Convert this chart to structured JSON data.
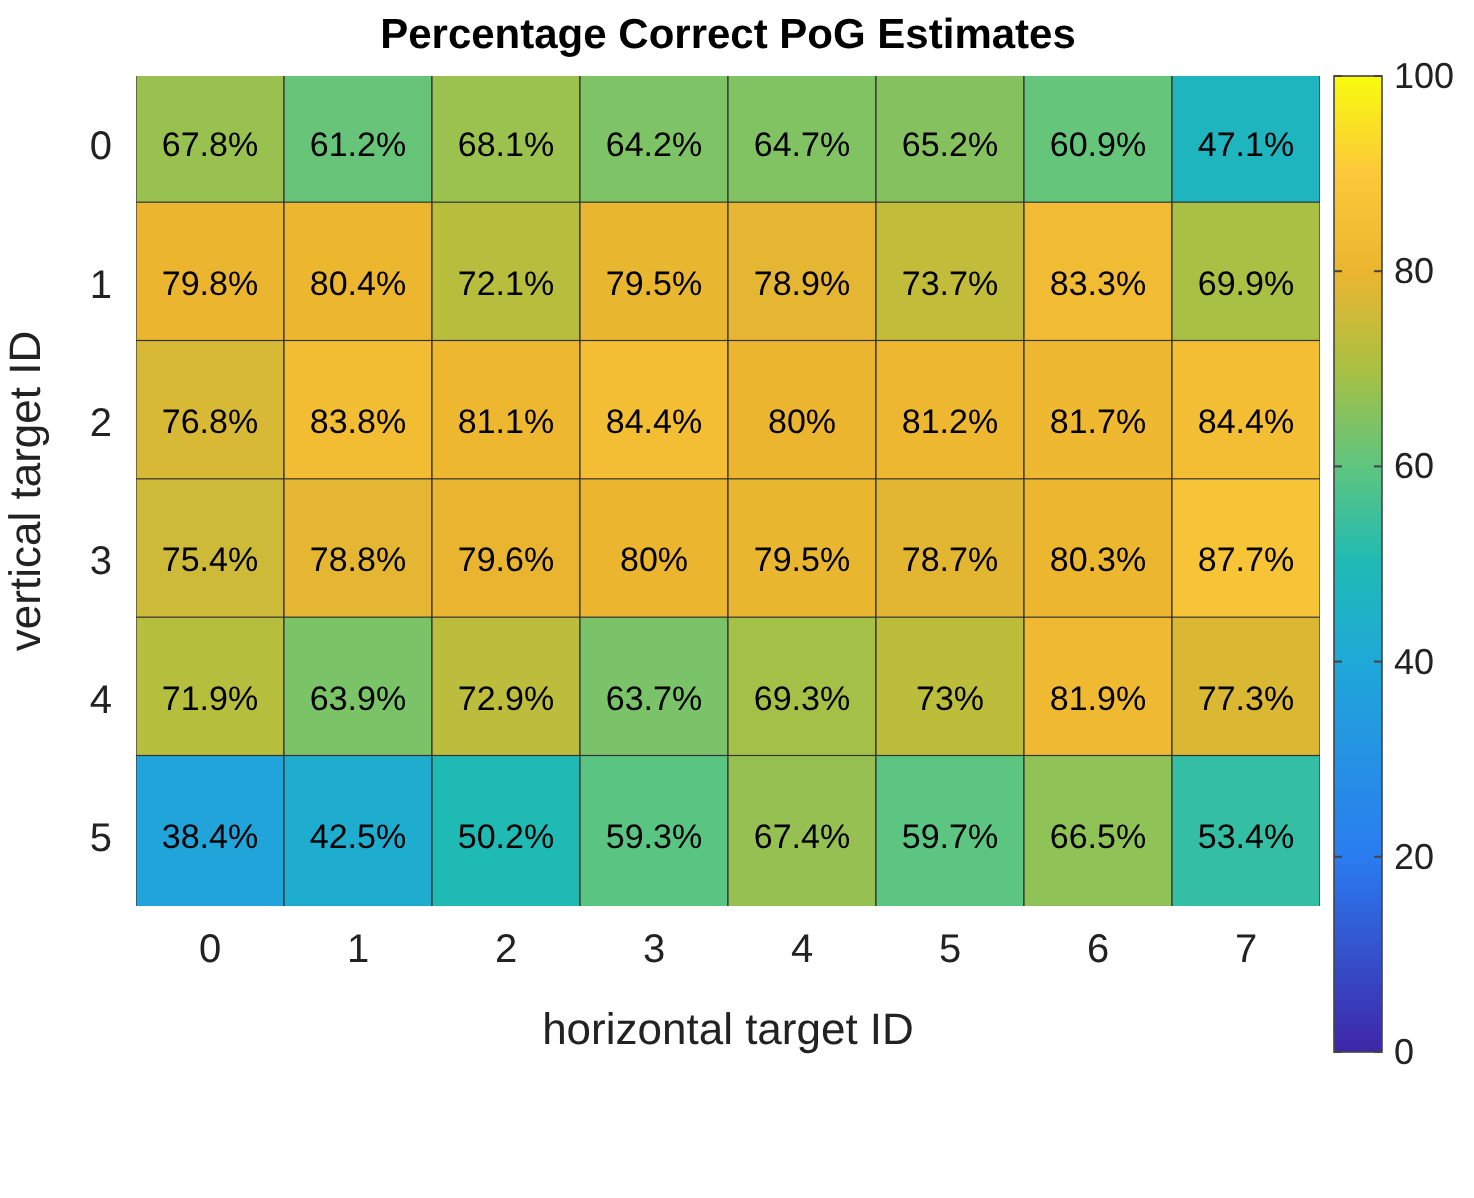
{
  "chart_data": {
    "type": "heatmap",
    "title": "Percentage Correct PoG Estimates",
    "xlabel": "horizontal target ID",
    "ylabel": "vertical target ID",
    "categories": [
      "0",
      "1",
      "2",
      "3",
      "4",
      "5",
      "6",
      "7"
    ],
    "y_categories": [
      "0",
      "1",
      "2",
      "3",
      "4",
      "5"
    ],
    "cells": [
      [
        67.8,
        61.2,
        68.1,
        64.2,
        64.7,
        65.2,
        60.9,
        47.1
      ],
      [
        79.8,
        80.4,
        72.1,
        79.5,
        78.9,
        73.7,
        83.3,
        69.9
      ],
      [
        76.8,
        83.8,
        81.1,
        84.4,
        80,
        81.2,
        81.7,
        84.4
      ],
      [
        75.4,
        78.8,
        79.6,
        80,
        79.5,
        78.7,
        80.3,
        87.7
      ],
      [
        71.9,
        63.9,
        72.9,
        63.7,
        69.3,
        73,
        81.9,
        77.3
      ],
      [
        38.4,
        42.5,
        50.2,
        59.3,
        67.4,
        59.7,
        66.5,
        53.4
      ]
    ],
    "cell_labels": [
      [
        "67.8%",
        "61.2%",
        "68.1%",
        "64.2%",
        "64.7%",
        "65.2%",
        "60.9%",
        "47.1%"
      ],
      [
        "79.8%",
        "80.4%",
        "72.1%",
        "79.5%",
        "78.9%",
        "73.7%",
        "83.3%",
        "69.9%"
      ],
      [
        "76.8%",
        "83.8%",
        "81.1%",
        "84.4%",
        "80%",
        "81.2%",
        "81.7%",
        "84.4%"
      ],
      [
        "75.4%",
        "78.8%",
        "79.6%",
        "80%",
        "79.5%",
        "78.7%",
        "80.3%",
        "87.7%"
      ],
      [
        "71.9%",
        "63.9%",
        "72.9%",
        "63.7%",
        "69.3%",
        "73%",
        "81.9%",
        "77.3%"
      ],
      [
        "38.4%",
        "42.5%",
        "50.2%",
        "59.3%",
        "67.4%",
        "59.7%",
        "66.5%",
        "53.4%"
      ]
    ],
    "clim": [
      0,
      100
    ],
    "cticks": [
      0,
      20,
      40,
      60,
      80,
      100
    ]
  }
}
